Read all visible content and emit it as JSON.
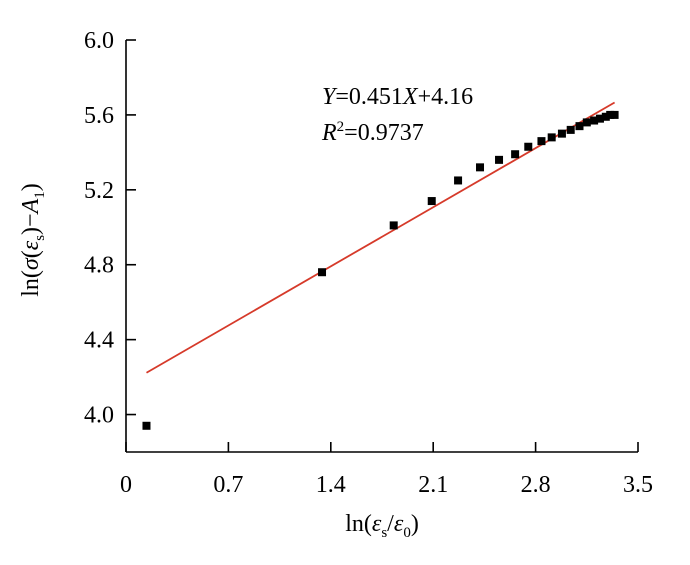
{
  "chart_data": {
    "type": "scatter",
    "xlabel": "ln(εs/ε0)",
    "ylabel": "ln(σ(εs)−A1)",
    "xlim": [
      0,
      3.5
    ],
    "ylim": [
      3.8,
      6.0
    ],
    "xticks": [
      "0",
      "0.7",
      "1.4",
      "2.1",
      "2.8",
      "3.5"
    ],
    "yticks": [
      "4.0",
      "4.4",
      "4.8",
      "5.2",
      "5.6",
      "6.0"
    ],
    "series": [
      {
        "color": "#000000",
        "marker": "square",
        "x": [
          0.14,
          1.34,
          1.83,
          2.09,
          2.27,
          2.42,
          2.55,
          2.66,
          2.75,
          2.84,
          2.91,
          2.98,
          3.04,
          3.1,
          3.15,
          3.2,
          3.24,
          3.28,
          3.31,
          3.34
        ],
        "y": [
          3.94,
          4.76,
          5.01,
          5.14,
          5.25,
          5.32,
          5.36,
          5.39,
          5.43,
          5.46,
          5.48,
          5.5,
          5.52,
          5.54,
          5.56,
          5.57,
          5.58,
          5.59,
          5.6,
          5.6
        ]
      }
    ],
    "fit_line": {
      "color": "#d63a2a",
      "slope": 0.451,
      "intercept": 4.16,
      "x_range": [
        0.14,
        3.34
      ]
    },
    "annotations": {
      "equation": "Y=0.451X+4.16",
      "r2": "R2=0.9737"
    },
    "grid": false
  }
}
